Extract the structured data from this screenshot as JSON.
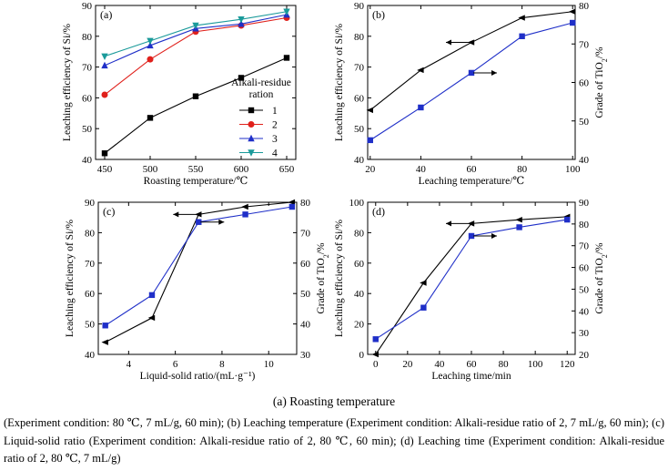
{
  "caption": {
    "main": "(a) Roasting temperature",
    "detail": "(Experiment condition: 80 ℃, 7 mL/g, 60 min); (b) Leaching temperature (Experiment condition: Alkali-residue ratio of 2, 7 mL/g, 60 min); (c) Liquid-solid ratio (Experiment condition: Alkali-residue ratio of 2, 80 ℃, 60 min); (d) Leaching time (Experiment condition: Alkali-residue ratio of 2, 80 ℃, 7 mL/g)"
  },
  "chart_data": [
    {
      "panel": "(a)",
      "type": "line",
      "xlabel": "Roasting temperature/℃",
      "ylabel": "Leaching efficiency of Si/%",
      "xlim": [
        440,
        660
      ],
      "ylim": [
        40,
        90
      ],
      "xticks": [
        450,
        500,
        550,
        600,
        650
      ],
      "yticks": [
        40,
        50,
        60,
        70,
        80,
        90
      ],
      "x": [
        450,
        500,
        550,
        600,
        650
      ],
      "legend_title": "Alkali-residue ration",
      "legend_position": "center-right",
      "series": [
        {
          "name": "1",
          "color": "#000000",
          "marker": "square",
          "values": [
            42.0,
            53.5,
            60.5,
            66.5,
            73.0
          ]
        },
        {
          "name": "2",
          "color": "#e0201b",
          "marker": "circle",
          "values": [
            61.0,
            72.5,
            81.5,
            83.5,
            86.0
          ]
        },
        {
          "name": "3",
          "color": "#1f2fc8",
          "marker": "triangle-up",
          "values": [
            70.5,
            77.0,
            82.5,
            84.0,
            87.0
          ]
        },
        {
          "name": "4",
          "color": "#1a9a9a",
          "marker": "triangle-down",
          "values": [
            73.5,
            78.5,
            83.5,
            85.5,
            88.0
          ]
        }
      ]
    },
    {
      "panel": "(b)",
      "type": "line",
      "xlabel": "Leaching temperature/℃",
      "ylabel": "Leaching efficiency of Si/%",
      "ylabel_right": "Grade of TiO2/%",
      "xlim": [
        19,
        101
      ],
      "ylim": [
        40,
        90
      ],
      "ylim_right": [
        40,
        80
      ],
      "xticks": [
        20,
        40,
        60,
        80,
        100
      ],
      "yticks": [
        40,
        50,
        60,
        70,
        80,
        90
      ],
      "yticks_right": [
        40,
        50,
        60,
        70,
        80
      ],
      "x": [
        20,
        40,
        60,
        80,
        100
      ],
      "series": [
        {
          "axis": "left",
          "color": "#000000",
          "marker": "triangle-left",
          "arrow": "left",
          "values": [
            56.0,
            69.0,
            78.0,
            86.0,
            88.0
          ]
        },
        {
          "axis": "right",
          "color": "#1f2fc8",
          "marker": "square",
          "arrow": "right",
          "values": [
            45.0,
            53.5,
            62.5,
            72.0,
            75.5
          ]
        }
      ]
    },
    {
      "panel": "(c)",
      "type": "line",
      "xlabel": "Liquid-solid ratio/(mL·g⁻¹)",
      "ylabel": "Leaching efficiency of Si/%",
      "ylabel_right": "Grade of TiO2/%",
      "xlim": [
        2.7,
        11.2
      ],
      "ylim": [
        40,
        90
      ],
      "ylim_right": [
        30,
        80
      ],
      "xticks": [
        4,
        6,
        8,
        10
      ],
      "yticks": [
        40,
        50,
        60,
        70,
        80,
        90
      ],
      "yticks_right": [
        30,
        40,
        50,
        60,
        70,
        80
      ],
      "x": [
        3,
        5,
        7,
        9,
        11
      ],
      "series": [
        {
          "axis": "left",
          "color": "#000000",
          "marker": "triangle-left",
          "arrow": "left",
          "values": [
            44.0,
            52.0,
            86.0,
            88.5,
            90.0
          ]
        },
        {
          "axis": "right",
          "color": "#1f2fc8",
          "marker": "square",
          "arrow": "right",
          "values": [
            39.5,
            49.5,
            73.5,
            76.0,
            78.5
          ]
        }
      ]
    },
    {
      "panel": "(d)",
      "type": "line",
      "xlabel": "Leaching time/min",
      "ylabel": "Leaching efficiency of Si/%",
      "ylabel_right": "Grade of TiO2/%",
      "xlim": [
        -5,
        125
      ],
      "ylim": [
        0,
        100
      ],
      "ylim_right": [
        20,
        90
      ],
      "xticks": [
        0,
        20,
        40,
        60,
        80,
        100,
        120
      ],
      "yticks": [
        0,
        20,
        40,
        60,
        80,
        100
      ],
      "yticks_right": [
        20,
        30,
        40,
        50,
        60,
        70,
        80,
        90
      ],
      "x": [
        0,
        30,
        60,
        90,
        120
      ],
      "series": [
        {
          "axis": "left",
          "color": "#000000",
          "marker": "triangle-left",
          "arrow": "left",
          "values": [
            0,
            47,
            86,
            88.5,
            90.5
          ]
        },
        {
          "axis": "right",
          "color": "#1f2fc8",
          "marker": "square",
          "arrow": "right",
          "values": [
            27,
            41.5,
            74.5,
            78.5,
            82
          ]
        }
      ]
    }
  ]
}
